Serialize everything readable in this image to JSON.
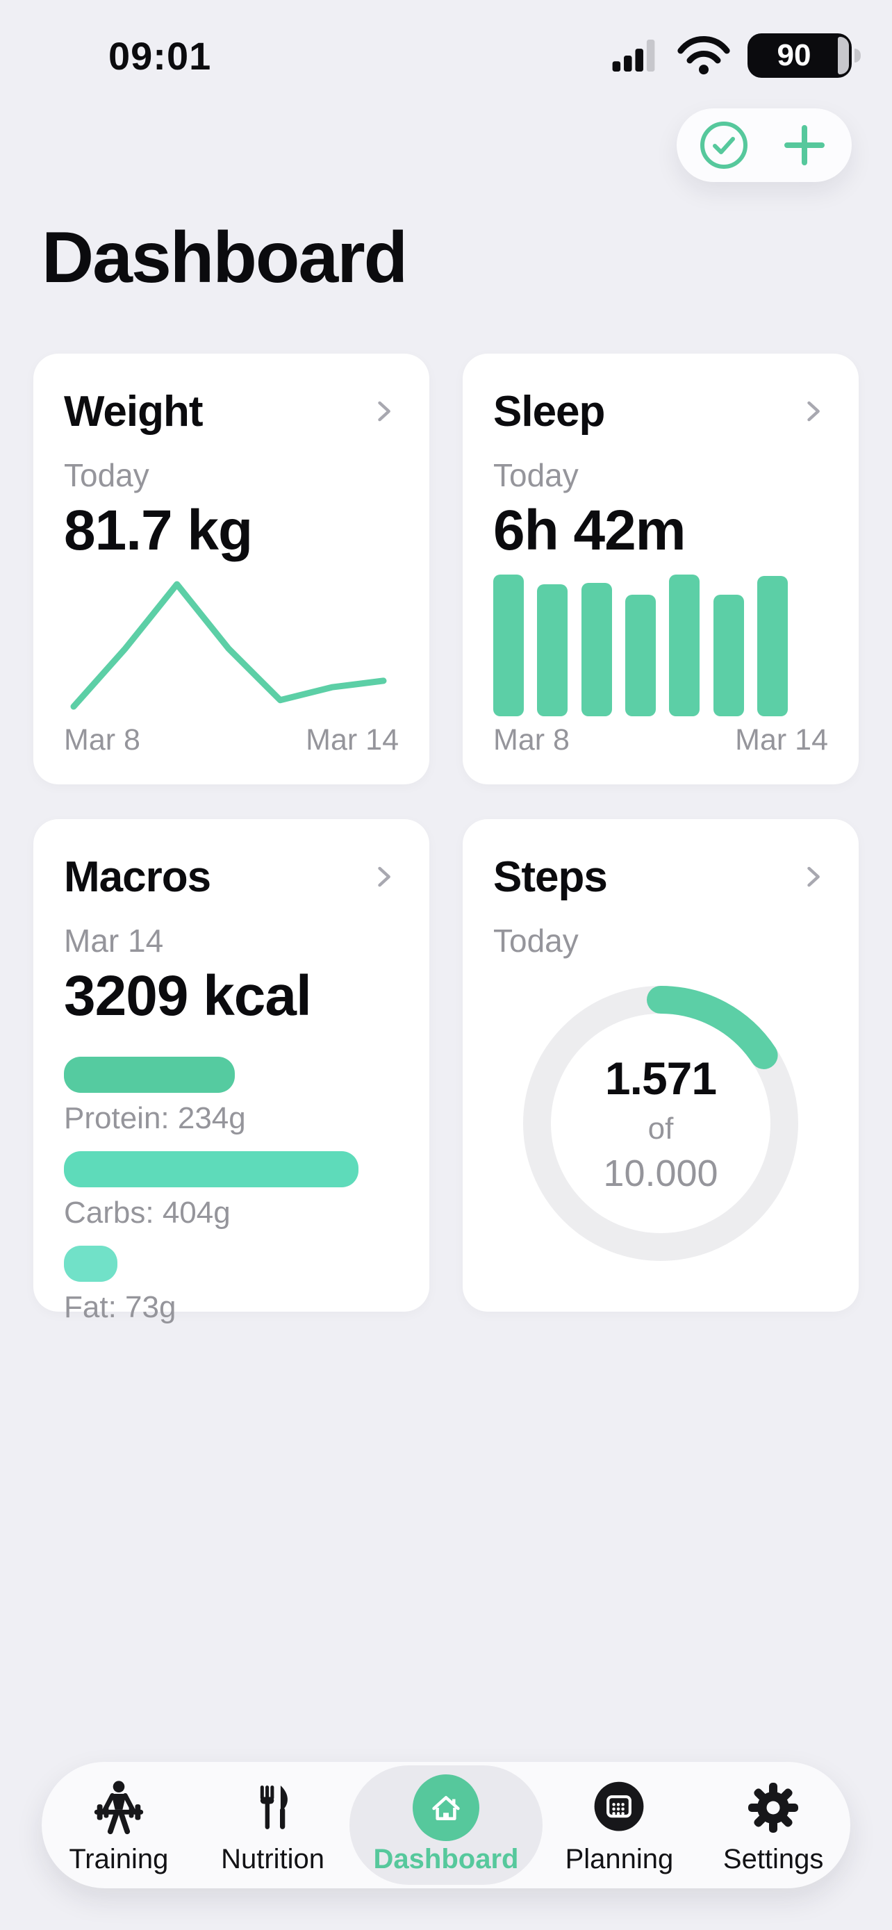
{
  "status_bar": {
    "time": "09:01",
    "battery_percent": "90"
  },
  "header": {
    "title": "Dashboard"
  },
  "icons": {
    "quick_actions": [
      "check-circle",
      "plus"
    ],
    "card_disclosure": "chevron-right",
    "status": [
      "cellular-signal",
      "wifi",
      "battery"
    ]
  },
  "cards": {
    "weight": {
      "title": "Weight",
      "period_label": "Today",
      "value": "81.7 kg",
      "x_start_label": "Mar 8",
      "x_end_label": "Mar 14"
    },
    "sleep": {
      "title": "Sleep",
      "period_label": "Today",
      "value": "6h 42m",
      "x_start_label": "Mar 8",
      "x_end_label": "Mar 14"
    },
    "macros": {
      "title": "Macros",
      "period_label": "Mar 14",
      "value": "3209 kcal",
      "rows": [
        {
          "label": "Protein: 234g"
        },
        {
          "label": "Carbs: 404g"
        },
        {
          "label": "Fat: 73g"
        }
      ]
    },
    "steps": {
      "title": "Steps",
      "period_label": "Today",
      "current": "1.571",
      "of_label": "of",
      "goal": "10.000"
    }
  },
  "tab_bar": {
    "items": [
      {
        "label": "Training",
        "icon": "barbell",
        "active": false
      },
      {
        "label": "Nutrition",
        "icon": "fork-knife",
        "active": false
      },
      {
        "label": "Dashboard",
        "icon": "home",
        "active": true
      },
      {
        "label": "Planning",
        "icon": "calendar",
        "active": false
      },
      {
        "label": "Settings",
        "icon": "gear",
        "active": false
      }
    ]
  },
  "colors": {
    "page_bg": "#EFEFF4",
    "card_bg": "#FFFFFF",
    "nav_bg": "#FAFAFC",
    "active_tab_bg": "#E9E9EE",
    "accent": "#56C89C",
    "chart": "#5CCFA6",
    "ring_track": "#EDEDEF",
    "text_muted": "#95959B",
    "chevron": "#A8A8B0",
    "ink": "#0B0B0E",
    "inactive_gray": "#C7C7CC"
  },
  "chart_data": [
    {
      "type": "line",
      "title": "Weight last 7 days (kg)",
      "x": [
        "Mar 8",
        "Mar 9",
        "Mar 10",
        "Mar 11",
        "Mar 12",
        "Mar 13",
        "Mar 14"
      ],
      "values": [
        81.3,
        82.2,
        83.2,
        82.2,
        81.4,
        81.6,
        81.7
      ],
      "ylim": [
        81.0,
        83.5
      ],
      "grid": false,
      "axis_tick_labels_shown": [
        "Mar 8",
        "Mar 14"
      ],
      "today_value_kg": 81.7
    },
    {
      "type": "bar",
      "title": "Sleep duration last 7 days (relative bar heights, no y-axis shown)",
      "categories": [
        "Mar 8",
        "Mar 9",
        "Mar 10",
        "Mar 11",
        "Mar 12",
        "Mar 13",
        "Mar 14"
      ],
      "values_relative": [
        1.0,
        0.93,
        0.94,
        0.86,
        1.0,
        0.86,
        0.99
      ],
      "grid": false,
      "axis_tick_labels_shown": [
        "Mar 8",
        "Mar 14"
      ],
      "today_value": "6h 42m"
    },
    {
      "type": "donut",
      "title": "Steps progress ring",
      "value": 1571,
      "goal": 10000,
      "percent": 15.7,
      "start_angle_deg": 0,
      "direction": "clockwise"
    },
    {
      "type": "progress",
      "title": "Macros progress bars",
      "series": [
        {
          "name": "Protein",
          "grams": 234,
          "fraction": 0.51,
          "color": "#55CBA0"
        },
        {
          "name": "Carbs",
          "grams": 404,
          "fraction": 0.88,
          "color": "#5EDBBA"
        },
        {
          "name": "Fat",
          "grams": 73,
          "fraction": 0.16,
          "color": "#71E1C8"
        }
      ]
    }
  ]
}
